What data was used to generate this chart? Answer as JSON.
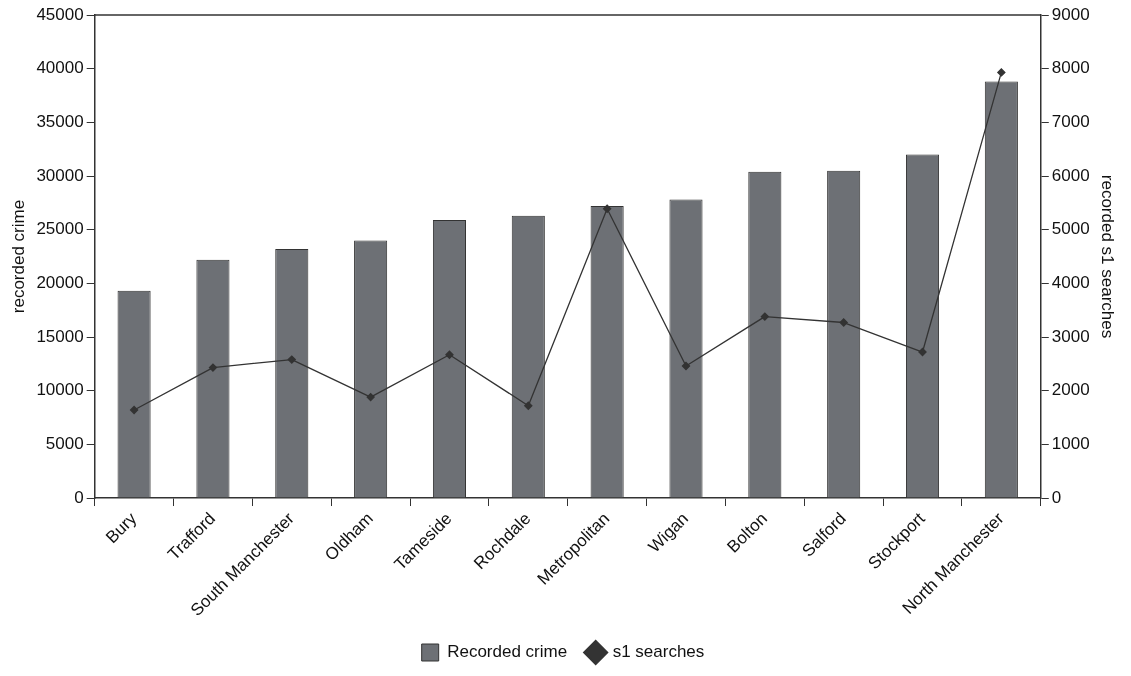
{
  "chart_data": {
    "type": "bar",
    "categories": [
      "Bury",
      "Trafford",
      "South Manchester",
      "Oldham",
      "Tameside",
      "Rochdale",
      "Metropolitan",
      "Wigan",
      "Bolton",
      "Salford",
      "Stockport",
      "North Manchester"
    ],
    "series": [
      {
        "name": "Recorded crime",
        "color": "#6d7075",
        "values": [
          19300,
          22200,
          23200,
          24000,
          25900,
          26300,
          27200,
          27800,
          30400,
          30500,
          32000,
          38800
        ]
      },
      {
        "name": "s1 searches",
        "type": "line",
        "axis": "y2",
        "color": "#333333",
        "marker": "diamond",
        "values": [
          1640,
          2430,
          2580,
          1880,
          2670,
          1720,
          5390,
          2460,
          3380,
          3270,
          2720,
          7930
        ]
      }
    ],
    "ylabel": "recorded crime",
    "y2label": "recorded s1 searches",
    "ylim": [
      0,
      45000
    ],
    "yticks": [
      0,
      5000,
      10000,
      15000,
      20000,
      25000,
      30000,
      35000,
      40000,
      45000
    ],
    "y2lim": [
      0,
      9000
    ],
    "y2ticks": [
      0,
      1000,
      2000,
      3000,
      4000,
      5000,
      6000,
      7000,
      8000,
      9000
    ],
    "grid": false,
    "legend": "bottom"
  }
}
